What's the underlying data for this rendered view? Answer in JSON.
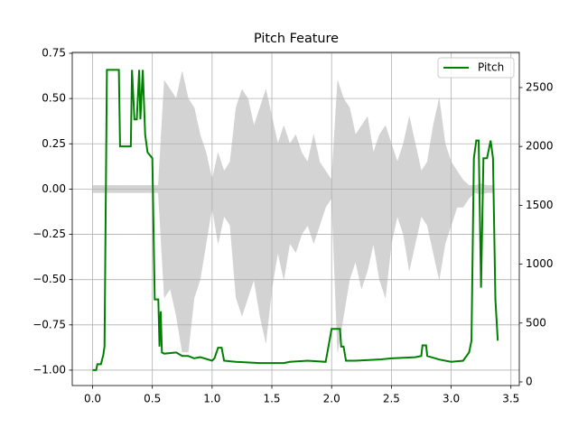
{
  "chart_data": {
    "type": "line",
    "title": "Pitch Feature",
    "waveform": {
      "color": "#d3d3d3",
      "x": [
        0.0,
        0.1,
        0.2,
        0.3,
        0.4,
        0.5,
        0.55,
        0.6,
        0.65,
        0.7,
        0.75,
        0.8,
        0.85,
        0.9,
        0.95,
        1.0,
        1.05,
        1.1,
        1.15,
        1.2,
        1.25,
        1.3,
        1.35,
        1.4,
        1.45,
        1.5,
        1.55,
        1.6,
        1.65,
        1.7,
        1.75,
        1.8,
        1.85,
        1.9,
        1.95,
        2.0,
        2.05,
        2.1,
        2.15,
        2.2,
        2.25,
        2.3,
        2.35,
        2.4,
        2.45,
        2.5,
        2.55,
        2.6,
        2.65,
        2.7,
        2.75,
        2.8,
        2.85,
        2.9,
        2.95,
        3.0,
        3.05,
        3.1,
        3.15,
        3.2,
        3.25,
        3.3,
        3.35
      ],
      "upper": [
        0.02,
        0.02,
        0.02,
        0.02,
        0.02,
        0.02,
        0.02,
        0.6,
        0.55,
        0.5,
        0.65,
        0.5,
        0.45,
        0.3,
        0.2,
        0.05,
        0.2,
        0.1,
        0.15,
        0.45,
        0.55,
        0.5,
        0.35,
        0.45,
        0.55,
        0.4,
        0.25,
        0.35,
        0.25,
        0.3,
        0.2,
        0.15,
        0.3,
        0.15,
        0.1,
        0.05,
        0.6,
        0.5,
        0.45,
        0.3,
        0.35,
        0.4,
        0.2,
        0.3,
        0.35,
        0.25,
        0.15,
        0.25,
        0.4,
        0.25,
        0.1,
        0.15,
        0.35,
        0.5,
        0.25,
        0.15,
        0.1,
        0.05,
        0.02,
        0.02,
        0.03,
        0.02,
        0.02
      ],
      "lower": [
        -0.02,
        -0.02,
        -0.02,
        -0.02,
        -0.02,
        -0.02,
        -0.02,
        -0.6,
        -0.55,
        -0.7,
        -0.9,
        -0.9,
        -0.6,
        -0.5,
        -0.3,
        -0.1,
        -0.3,
        -0.15,
        -0.2,
        -0.6,
        -0.7,
        -0.6,
        -0.5,
        -0.7,
        -0.85,
        -0.55,
        -0.35,
        -0.5,
        -0.3,
        -0.35,
        -0.25,
        -0.2,
        -0.3,
        -0.2,
        -0.1,
        -0.05,
        -0.9,
        -0.7,
        -0.5,
        -0.4,
        -0.55,
        -0.45,
        -0.3,
        -0.5,
        -0.6,
        -0.3,
        -0.15,
        -0.25,
        -0.45,
        -0.3,
        -0.15,
        -0.2,
        -0.35,
        -0.5,
        -0.3,
        -0.2,
        -0.1,
        -0.1,
        -0.05,
        -0.02,
        -0.03,
        -0.02,
        -0.02
      ]
    },
    "series": [
      {
        "name": "Pitch",
        "color": "#008000",
        "axis": "y2",
        "x": [
          0.0,
          0.03,
          0.04,
          0.07,
          0.09,
          0.1,
          0.12,
          0.22,
          0.23,
          0.32,
          0.33,
          0.35,
          0.37,
          0.39,
          0.4,
          0.42,
          0.44,
          0.46,
          0.5,
          0.52,
          0.55,
          0.56,
          0.57,
          0.58,
          0.6,
          0.7,
          0.75,
          0.8,
          0.85,
          0.9,
          1.0,
          1.02,
          1.05,
          1.08,
          1.1,
          1.2,
          1.4,
          1.6,
          1.65,
          1.8,
          1.95,
          2.0,
          2.07,
          2.08,
          2.1,
          2.12,
          2.2,
          2.4,
          2.5,
          2.7,
          2.75,
          2.76,
          2.79,
          2.8,
          2.9,
          3.0,
          3.1,
          3.15,
          3.17,
          3.19,
          3.21,
          3.23,
          3.25,
          3.27,
          3.3,
          3.33,
          3.35,
          3.37,
          3.39
        ],
        "values": [
          100,
          100,
          150,
          150,
          230,
          300,
          2650,
          2650,
          2000,
          2000,
          2650,
          2230,
          2230,
          2650,
          2230,
          2650,
          2100,
          1950,
          1900,
          700,
          700,
          300,
          600,
          250,
          240,
          250,
          220,
          220,
          200,
          210,
          180,
          200,
          290,
          290,
          180,
          170,
          160,
          160,
          170,
          180,
          170,
          450,
          450,
          300,
          300,
          180,
          180,
          190,
          200,
          210,
          220,
          310,
          310,
          220,
          190,
          170,
          180,
          250,
          350,
          1900,
          2050,
          2050,
          800,
          1900,
          1900,
          2050,
          1900,
          700,
          350
        ]
      }
    ],
    "xlim": [
      -0.17,
      3.57
    ],
    "xticks": [
      {
        "value": 0,
        "label": "0.0"
      },
      0.5,
      {
        "value": 1,
        "label": "1.0"
      },
      1.5,
      {
        "value": 2,
        "label": "2.0"
      },
      2.5,
      {
        "value": 3,
        "label": "3.0"
      },
      3.5
    ],
    "ylim": [
      -1.085,
      0.755
    ],
    "yticks": [
      {
        "value": -1,
        "label": "−1.00"
      },
      {
        "value": -0.75,
        "label": "−0.75"
      },
      {
        "value": -0.5,
        "label": "−0.50"
      },
      {
        "value": -0.25,
        "label": "−0.25"
      },
      {
        "value": 0,
        "label": "0.00"
      },
      0.25,
      {
        "value": 0.5,
        "label": "0.50"
      },
      0.75
    ],
    "y2lim": [
      -31,
      2799
    ],
    "y2ticks": [
      0,
      500,
      1000,
      1500,
      2000,
      2500
    ],
    "grid": true,
    "legend": "upper right"
  }
}
